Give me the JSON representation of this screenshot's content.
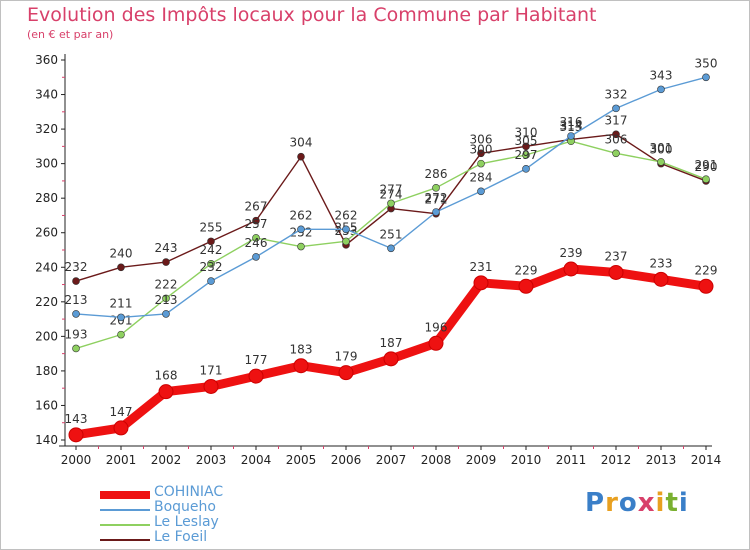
{
  "title": "Evolution des Impôts locaux pour la Commune par Habitant",
  "subtitle": "(en € et par an)",
  "logo": {
    "text": "Proxiti",
    "colors": [
      "#3a7fc8",
      "#e8a020",
      "#3a7fc8",
      "#d8406a",
      "#e8a020",
      "#7ab030",
      "#3a7fc8"
    ]
  },
  "chart_data": {
    "type": "line",
    "title": "Evolution des Impôts locaux pour la Commune par Habitant",
    "subtitle": "(en € et par an)",
    "x": [
      2000,
      2001,
      2002,
      2003,
      2004,
      2005,
      2006,
      2007,
      2008,
      2009,
      2010,
      2011,
      2012,
      2013,
      2014
    ],
    "ylim": [
      140,
      360
    ],
    "yticks": [
      140,
      160,
      180,
      200,
      220,
      240,
      260,
      280,
      300,
      320,
      340,
      360
    ],
    "grid": false,
    "legend_position": "bottom-left",
    "series": [
      {
        "name": "Le Foeil",
        "color": "#6b1a1a",
        "values": [
          232,
          240,
          243,
          255,
          267,
          304,
          253,
          274,
          271,
          306,
          310,
          314,
          317,
          300,
          290
        ]
      },
      {
        "name": "Le Leslay",
        "color": "#8ed060",
        "values": [
          193,
          201,
          222,
          242,
          257,
          252,
          255,
          277,
          286,
          300,
          305,
          313,
          306,
          301,
          291
        ]
      },
      {
        "name": "Boqueho",
        "color": "#5b9bd5",
        "values": [
          213,
          211,
          213,
          232,
          246,
          262,
          262,
          251,
          272,
          284,
          297,
          316,
          332,
          343,
          350
        ]
      },
      {
        "name": "COHINIAC",
        "color": "#ee1111",
        "values": [
          143,
          147,
          168,
          171,
          177,
          183,
          179,
          187,
          196,
          231,
          229,
          239,
          237,
          233,
          229
        ]
      }
    ]
  },
  "legend": [
    {
      "name": "COHINIAC",
      "color": "#ee1111"
    },
    {
      "name": "Boqueho",
      "color": "#5b9bd5"
    },
    {
      "name": "Le Leslay",
      "color": "#8ed060"
    },
    {
      "name": "Le Foeil",
      "color": "#6b1a1a"
    }
  ]
}
